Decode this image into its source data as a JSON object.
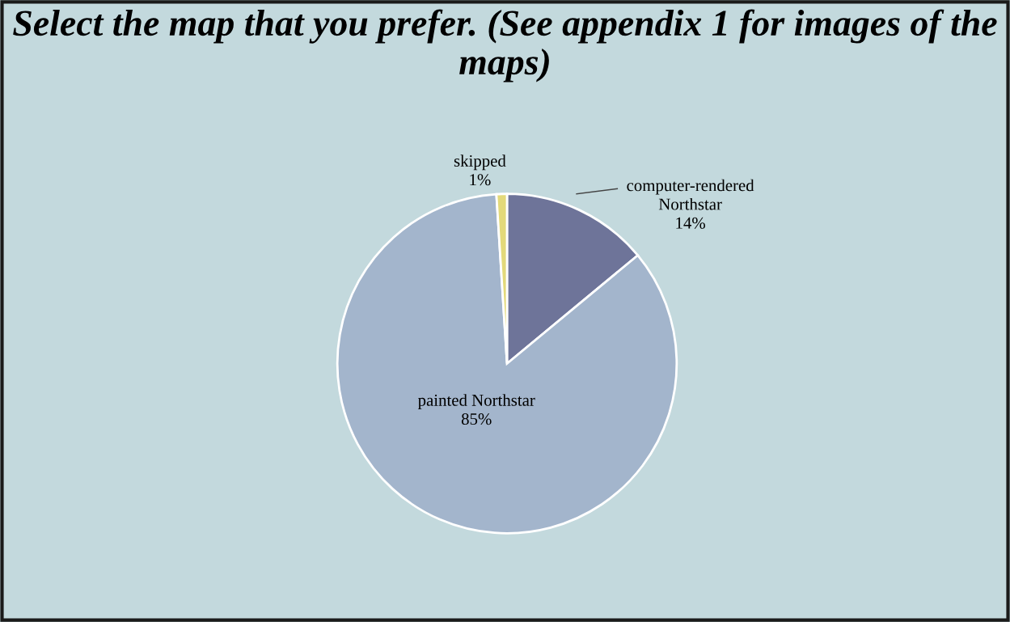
{
  "chart_data": {
    "type": "pie",
    "title": "Select the map that you prefer. (See appendix 1 for images of the maps)",
    "categories": [
      "computer-rendered\nNorthstar",
      "painted Northstar",
      "skipped"
    ],
    "values": [
      14,
      85,
      1
    ],
    "value_labels": [
      "14%",
      "85%",
      "1%"
    ],
    "colors": [
      "#6e7499",
      "#a3b5cc",
      "#e3d97a"
    ],
    "legend": false
  }
}
